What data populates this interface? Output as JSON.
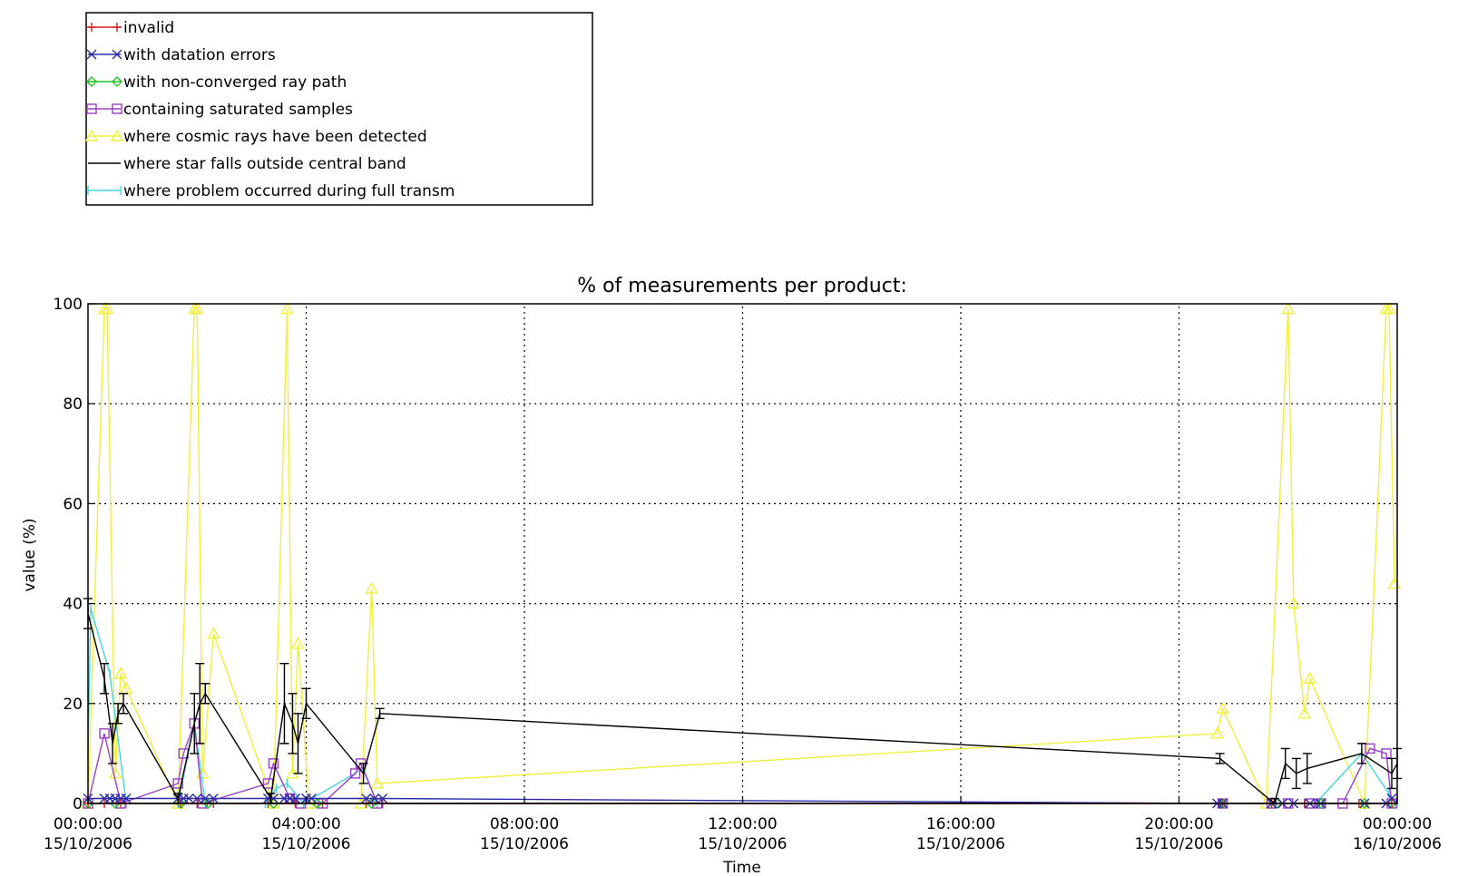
{
  "chart_data": {
    "type": "line",
    "title": "% of measurements per product:",
    "xlabel": "Time",
    "ylabel": "value (%)",
    "ylim": [
      0,
      100
    ],
    "xlim": [
      0,
      24
    ],
    "x_unit": "hours from 00:00:00 15/10/2006",
    "grid": true,
    "legend_placement": "top-left (outside, above plot)",
    "x_ticks": [
      {
        "x": 0,
        "time": "00:00:00",
        "date": "15/10/2006"
      },
      {
        "x": 4,
        "time": "04:00:00",
        "date": "15/10/2006"
      },
      {
        "x": 8,
        "time": "08:00:00",
        "date": "15/10/2006"
      },
      {
        "x": 12,
        "time": "12:00:00",
        "date": "15/10/2006"
      },
      {
        "x": 16,
        "time": "16:00:00",
        "date": "15/10/2006"
      },
      {
        "x": 20,
        "time": "20:00:00",
        "date": "15/10/2006"
      },
      {
        "x": 24,
        "time": "00:00:00",
        "date": "16/10/2006"
      }
    ],
    "y_ticks": [
      0,
      20,
      40,
      60,
      80,
      100
    ],
    "series": [
      {
        "name": "invalid",
        "color": "#d62020",
        "marker": "plus",
        "x": [
          0.0,
          0.3,
          0.6,
          1.7,
          2.0,
          2.3,
          3.3,
          3.8,
          4.3,
          5.1,
          5.4,
          20.8,
          21.7,
          22.3,
          23.3,
          23.9
        ],
        "y": [
          0,
          0,
          0,
          0,
          0,
          0,
          0,
          0,
          0,
          0,
          0,
          0,
          0,
          0,
          0,
          0
        ]
      },
      {
        "name": "with datation errors",
        "color": "#2a2aaa",
        "marker": "x",
        "x": [
          0.0,
          0.3,
          0.4,
          0.5,
          0.6,
          0.7,
          1.65,
          1.75,
          1.85,
          2.0,
          2.15,
          2.3,
          3.3,
          3.4,
          3.6,
          3.7,
          3.8,
          4.0,
          4.1,
          5.1,
          5.25,
          5.4,
          20.7,
          20.8,
          21.7,
          21.9,
          22.1,
          22.4,
          22.6,
          23.4,
          23.8,
          23.9
        ],
        "y": [
          1,
          1,
          1,
          1,
          1,
          1,
          1,
          1,
          1,
          1,
          1,
          1,
          1,
          1,
          1,
          1,
          1,
          1,
          1,
          1,
          1,
          1,
          0,
          0,
          0,
          0,
          0,
          0,
          0,
          0,
          0,
          1
        ]
      },
      {
        "name": "with non-converged ray path",
        "color": "#22c322",
        "marker": "diamond",
        "x": [
          0.0,
          0.5,
          1.7,
          2.2,
          3.4,
          4.2,
          5.2,
          20.8,
          21.8,
          22.6,
          23.4,
          23.9
        ],
        "y": [
          0,
          0,
          0,
          0,
          0,
          0,
          0,
          0,
          0,
          0,
          0,
          0
        ]
      },
      {
        "name": "containing saturated samples",
        "color": "#9b3fc7",
        "marker": "square",
        "x": [
          0.0,
          0.3,
          0.6,
          1.65,
          1.75,
          1.95,
          2.1,
          3.3,
          3.4,
          3.7,
          3.9,
          4.3,
          4.9,
          5.0,
          5.3,
          20.8,
          21.7,
          22.0,
          22.4,
          22.6,
          23.0,
          23.5,
          23.8,
          23.9
        ],
        "y": [
          0,
          14,
          0,
          4,
          10,
          16,
          0,
          4,
          8,
          1,
          0,
          0,
          6,
          8,
          0,
          0,
          0,
          0,
          0,
          0,
          0,
          11,
          10,
          0
        ]
      },
      {
        "name": "where cosmic rays have been detected",
        "color": "#f0f03c",
        "marker": "triangle",
        "x": [
          0.0,
          0.3,
          0.35,
          0.5,
          0.6,
          0.7,
          1.65,
          1.95,
          2.0,
          2.1,
          2.3,
          3.4,
          3.65,
          3.75,
          3.85,
          4.05,
          5.0,
          5.2,
          5.3,
          20.7,
          20.8,
          21.6,
          22.0,
          22.1,
          22.3,
          22.4,
          23.4,
          23.8,
          23.85,
          23.95
        ],
        "y": [
          0,
          99,
          99,
          6,
          26,
          23,
          0,
          99,
          99,
          6,
          34,
          0,
          99,
          6,
          32,
          0,
          0,
          43,
          4,
          14,
          19,
          0,
          99,
          40,
          18,
          25,
          0,
          99,
          99,
          44
        ]
      },
      {
        "name": "where star falls outside central band",
        "color": "#000000",
        "marker": "errorbar",
        "x": [
          0.0,
          0.3,
          0.45,
          0.55,
          0.65,
          1.65,
          1.95,
          2.05,
          2.15,
          3.35,
          3.6,
          3.75,
          3.85,
          4.0,
          5.05,
          5.35,
          20.75,
          21.75,
          21.95,
          22.15,
          22.35,
          23.35,
          23.9,
          24.0
        ],
        "y": [
          38,
          25,
          12,
          18,
          20,
          1,
          16,
          20,
          22,
          1,
          20,
          16,
          12,
          20,
          6,
          18,
          9,
          0,
          8,
          6,
          7,
          10,
          6,
          8
        ],
        "errors": [
          3,
          3,
          4,
          2,
          2,
          1,
          6,
          8,
          2,
          1,
          8,
          6,
          6,
          3,
          2,
          1,
          1,
          1,
          3,
          3,
          3,
          2,
          3,
          3
        ]
      },
      {
        "name": "where problem occurred during full transm",
        "color": "#46d6e0",
        "marker": "bar",
        "x": [
          0.0,
          0.05,
          0.4,
          0.7,
          1.65,
          1.95,
          2.15,
          3.25,
          3.45,
          3.65,
          3.95,
          5.05,
          5.3,
          21.75,
          22.5,
          23.35,
          23.85,
          24.0
        ],
        "y": [
          10,
          39,
          26,
          0,
          0,
          16,
          0,
          0,
          3,
          4,
          0,
          7,
          0,
          0,
          0,
          10,
          2,
          0
        ]
      }
    ]
  }
}
